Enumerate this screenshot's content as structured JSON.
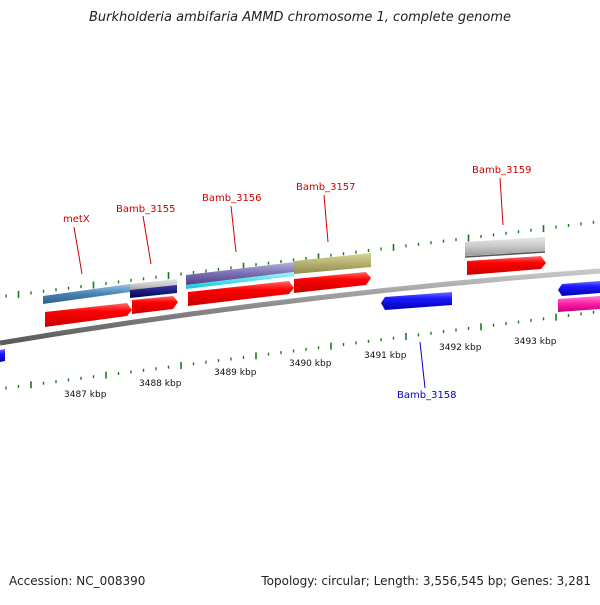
{
  "title": "Burkholderia ambifaria AMMD chromosome 1, complete genome",
  "footer": {
    "accession": "Accession: NC_008390",
    "summary": "Topology: circular; Length: 3,556,545 bp; Genes: 3,281"
  },
  "colors": {
    "forward_cds": "#ff0000",
    "reverse_cds": "#0000ee",
    "backbone": "#8a8a8a",
    "ticks": "#1a7a1a",
    "top_label": "#cc0000",
    "bottom_label": "#0000cc",
    "magenta_feature": "#ff00aa"
  },
  "ticks": {
    "labels": [
      "3487 kbp",
      "3488 kbp",
      "3489 kbp",
      "3490 kbp",
      "3491 kbp",
      "3492 kbp",
      "3493 kbp"
    ]
  },
  "genes": {
    "top": [
      {
        "name": "metX"
      },
      {
        "name": "Bamb_3155"
      },
      {
        "name": "Bamb_3156"
      },
      {
        "name": "Bamb_3157"
      },
      {
        "name": "Bamb_3159"
      }
    ],
    "bottom": [
      {
        "name": "Bamb_3158"
      }
    ]
  }
}
